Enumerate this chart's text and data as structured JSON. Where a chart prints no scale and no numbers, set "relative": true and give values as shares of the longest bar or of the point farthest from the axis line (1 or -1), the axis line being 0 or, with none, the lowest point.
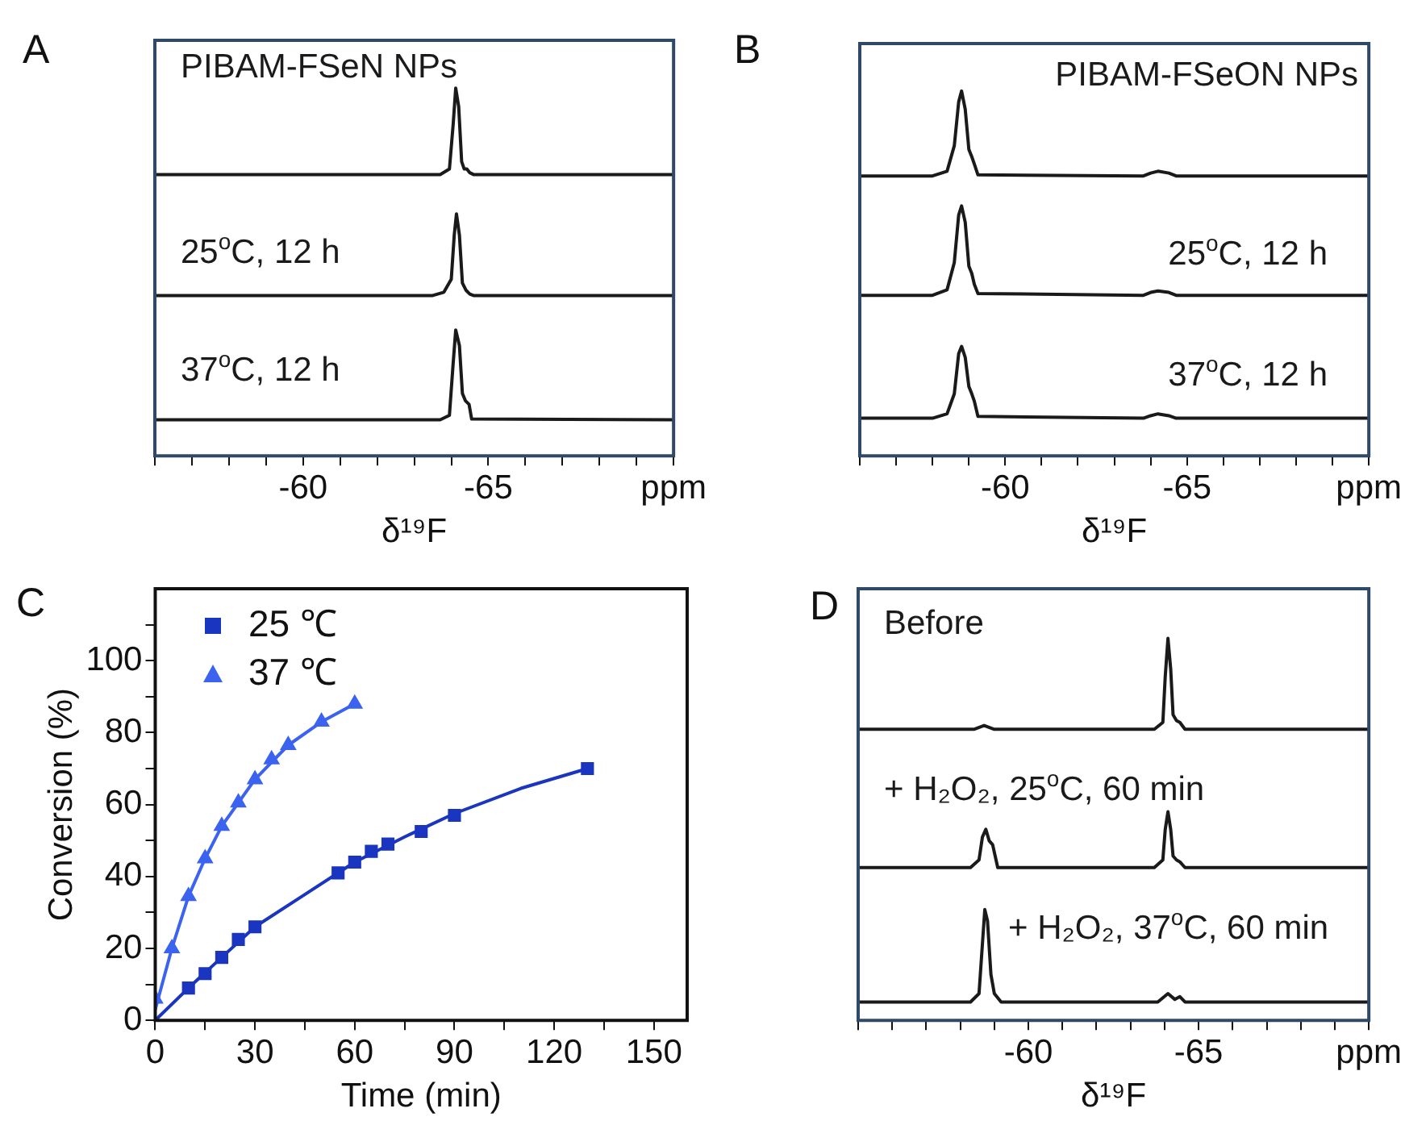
{
  "chart_data": [
    {
      "type": "line",
      "title": "A",
      "xlabel": "δ¹⁹F",
      "relative": true,
      "marker": "none",
      "xlim": [
        -56,
        -70
      ],
      "xticks": [
        {
          "value": -56,
          "label": null
        },
        {
          "value": -57,
          "label": null
        },
        {
          "value": -58,
          "label": null
        },
        {
          "value": -59,
          "label": null
        },
        -60,
        {
          "value": -61,
          "label": null
        },
        {
          "value": -62,
          "label": null
        },
        {
          "value": -63,
          "label": null
        },
        {
          "value": -64,
          "label": null
        },
        -65,
        {
          "value": -66,
          "label": null
        },
        {
          "value": -67,
          "label": null
        },
        {
          "value": -68,
          "label": null
        },
        {
          "value": -69,
          "label": null
        },
        {
          "value": -70,
          "label": "ppm"
        }
      ],
      "series": [
        {
          "name": "PIBAM-FSeN NPs",
          "color": "#1a1a1a",
          "x": [
            -56,
            -63.7,
            -63.95,
            -64.05,
            -64.12,
            -64.2,
            -64.28,
            -64.35,
            -64.42,
            -64.5,
            -64.6,
            -70
          ],
          "values": [
            0.765,
            0.765,
            0.78,
            0.9,
            1,
            0.95,
            0.8,
            0.78,
            0.78,
            0.77,
            0.765,
            0.765
          ]
        },
        {
          "name": "25$^{o}$C, 12 h",
          "color": "#1a1a1a",
          "x": [
            -56,
            -63.5,
            -63.8,
            -64.0,
            -64.08,
            -64.14,
            -64.22,
            -64.3,
            -64.4,
            -64.5,
            -64.6,
            -70
          ],
          "values": [
            0.436,
            0.436,
            0.445,
            0.48,
            0.6,
            0.658,
            0.6,
            0.47,
            0.45,
            0.44,
            0.436,
            0.436
          ]
        },
        {
          "name": "37$^{o}$C, 12 h",
          "color": "#1a1a1a",
          "x": [
            -56,
            -63.7,
            -63.95,
            -64.05,
            -64.12,
            -64.22,
            -64.3,
            -64.38,
            -64.48,
            -64.55,
            -70
          ],
          "values": [
            0.098,
            0.098,
            0.11,
            0.25,
            0.342,
            0.3,
            0.17,
            0.15,
            0.14,
            0.1,
            0.098
          ]
        }
      ]
    },
    {
      "type": "line",
      "title": "B",
      "xlabel": "δ¹⁹F",
      "relative": true,
      "marker": "none",
      "xlim": [
        -56,
        -70
      ],
      "xticks": [
        {
          "value": -56,
          "label": null
        },
        {
          "value": -57,
          "label": null
        },
        {
          "value": -58,
          "label": null
        },
        {
          "value": -59,
          "label": null
        },
        -60,
        {
          "value": -61,
          "label": null
        },
        {
          "value": -62,
          "label": null
        },
        {
          "value": -63,
          "label": null
        },
        {
          "value": -64,
          "label": null
        },
        -65,
        {
          "value": -66,
          "label": null
        },
        {
          "value": -67,
          "label": null
        },
        {
          "value": -68,
          "label": null
        },
        {
          "value": -69,
          "label": null
        },
        {
          "value": -70,
          "label": "ppm"
        }
      ],
      "series": [
        {
          "name": "PIBAM-FSeON NPs",
          "color": "#1a1a1a",
          "x": [
            -56,
            -58.0,
            -58.4,
            -58.6,
            -58.72,
            -58.8,
            -58.9,
            -59.0,
            -59.08,
            -59.15,
            -59.25,
            -63.8,
            -64.0,
            -64.2,
            -64.5,
            -64.7,
            -70
          ],
          "values": [
            0.767,
            0.767,
            0.78,
            0.85,
            0.97,
            1,
            0.95,
            0.84,
            0.82,
            0.8,
            0.77,
            0.767,
            0.775,
            0.78,
            0.775,
            0.767,
            0.767
          ]
        },
        {
          "name": "25$^{o}$C, 12 h",
          "color": "#1a1a1a",
          "x": [
            -56,
            -58.0,
            -58.4,
            -58.6,
            -58.72,
            -58.8,
            -58.9,
            -59.0,
            -59.08,
            -59.15,
            -59.25,
            -63.8,
            -64.0,
            -64.2,
            -64.5,
            -64.7,
            -70
          ],
          "values": [
            0.44,
            0.44,
            0.455,
            0.53,
            0.66,
            0.685,
            0.64,
            0.52,
            0.5,
            0.47,
            0.445,
            0.44,
            0.448,
            0.452,
            0.448,
            0.44,
            0.44
          ]
        },
        {
          "name": "37$^{o}$C, 12 h",
          "color": "#1a1a1a",
          "x": [
            -56,
            -58.0,
            -58.4,
            -58.6,
            -58.72,
            -58.8,
            -58.9,
            -59.0,
            -59.08,
            -59.15,
            -59.25,
            -63.8,
            -64.0,
            -64.2,
            -64.5,
            -64.7,
            -70
          ],
          "values": [
            0.103,
            0.103,
            0.115,
            0.17,
            0.28,
            0.3,
            0.27,
            0.19,
            0.17,
            0.15,
            0.108,
            0.103,
            0.11,
            0.115,
            0.11,
            0.103,
            0.103
          ]
        }
      ]
    },
    {
      "type": "scatter",
      "title": "C",
      "xlabel": "Time (min)",
      "ylabel": "Conversion (%)",
      "legend": "top left",
      "xlim": [
        0,
        160
      ],
      "xticks": [
        0,
        {
          "value": 15,
          "label": null
        },
        30,
        {
          "value": 45,
          "label": null
        },
        60,
        {
          "value": 75,
          "label": null
        },
        90,
        {
          "value": 105,
          "label": null
        },
        120,
        {
          "value": 135,
          "label": null
        },
        150
      ],
      "ylim": [
        0,
        120
      ],
      "yticks": [
        0,
        {
          "value": 10,
          "label": null
        },
        20,
        {
          "value": 30,
          "label": null
        },
        40,
        {
          "value": 50,
          "label": null
        },
        60,
        {
          "value": 70,
          "label": null
        },
        80,
        {
          "value": 90,
          "label": null
        },
        100,
        {
          "value": 110,
          "label": null
        }
      ],
      "series": [
        {
          "name": "25 ℃",
          "marker": "square",
          "color": "#1a35c0",
          "x": [
            10,
            15,
            20,
            25,
            30,
            55,
            60,
            65,
            70,
            80,
            90,
            130
          ],
          "values": [
            9,
            13,
            17.5,
            22.5,
            26,
            41,
            44,
            47,
            49,
            52.5,
            57,
            70
          ]
        },
        {
          "name": "37 ℃",
          "marker": "triangle",
          "color": "#3b63f0",
          "x": [
            0,
            5,
            10,
            15,
            20,
            25,
            30,
            35,
            40,
            50,
            60
          ],
          "values": [
            6,
            20,
            34.5,
            45,
            54,
            60.5,
            67,
            72.5,
            76.5,
            83,
            88
          ]
        },
        {
          "type": "line",
          "marker": "none",
          "color": "#1a35c0",
          "x": [
            0,
            10,
            20,
            30,
            45,
            60,
            75,
            90,
            110,
            130
          ],
          "values": [
            0,
            9,
            17.5,
            26,
            35,
            44,
            51,
            57.5,
            64.5,
            70
          ]
        },
        {
          "type": "line",
          "marker": "none",
          "color": "#3b63f0",
          "x": [
            0,
            5,
            10,
            15,
            20,
            30,
            40,
            50,
            60
          ],
          "values": [
            3,
            20,
            34.5,
            45,
            54,
            67,
            76.5,
            83,
            88
          ]
        }
      ]
    },
    {
      "type": "line",
      "title": "D",
      "xlabel": "δ¹⁹F",
      "relative": true,
      "marker": "none",
      "xlim": [
        -55,
        -70
      ],
      "xticks": [
        {
          "value": -55,
          "label": null
        },
        {
          "value": -56,
          "label": null
        },
        {
          "value": -57,
          "label": null
        },
        {
          "value": -58,
          "label": null
        },
        {
          "value": -59,
          "label": null
        },
        -60,
        {
          "value": -61,
          "label": null
        },
        {
          "value": -62,
          "label": null
        },
        {
          "value": -63,
          "label": null
        },
        {
          "value": -64,
          "label": null
        },
        -65,
        {
          "value": -66,
          "label": null
        },
        {
          "value": -67,
          "label": null
        },
        {
          "value": -68,
          "label": null
        },
        {
          "value": -69,
          "label": null
        },
        {
          "value": -70,
          "label": "ppm"
        }
      ],
      "series": [
        {
          "name": "Before",
          "color": "#1a1a1a",
          "x": [
            -55,
            -58.4,
            -58.7,
            -59.0,
            -63.7,
            -63.95,
            -64.02,
            -64.1,
            -64.18,
            -64.25,
            -64.35,
            -64.45,
            -64.6,
            -70
          ],
          "values": [
            0.762,
            0.762,
            0.772,
            0.762,
            0.762,
            0.78,
            0.9,
            1,
            0.92,
            0.8,
            0.785,
            0.78,
            0.762,
            0.762
          ]
        },
        {
          "name": "+ H₂O₂, 25$^{o}$C, 60 min",
          "color": "#1a1a1a",
          "x": [
            -55,
            -58.3,
            -58.55,
            -58.65,
            -58.75,
            -58.85,
            -58.95,
            -59.1,
            -63.7,
            -63.95,
            -64.02,
            -64.1,
            -64.18,
            -64.25,
            -64.35,
            -64.45,
            -64.6,
            -70
          ],
          "values": [
            0.4,
            0.4,
            0.42,
            0.48,
            0.5,
            0.47,
            0.46,
            0.4,
            0.4,
            0.42,
            0.5,
            0.546,
            0.5,
            0.43,
            0.42,
            0.415,
            0.4,
            0.4
          ]
        },
        {
          "name": "+ H₂O₂, 37$^{o}$C, 60 min",
          "color": "#1a1a1a",
          "x": [
            -55,
            -58.3,
            -58.55,
            -58.65,
            -58.72,
            -58.8,
            -58.9,
            -59.0,
            -59.2,
            -63.8,
            -64.1,
            -64.3,
            -64.45,
            -64.6,
            -70
          ],
          "values": [
            0.048,
            0.048,
            0.07,
            0.2,
            0.29,
            0.26,
            0.12,
            0.07,
            0.048,
            0.048,
            0.07,
            0.055,
            0.062,
            0.048,
            0.048
          ]
        }
      ]
    }
  ]
}
